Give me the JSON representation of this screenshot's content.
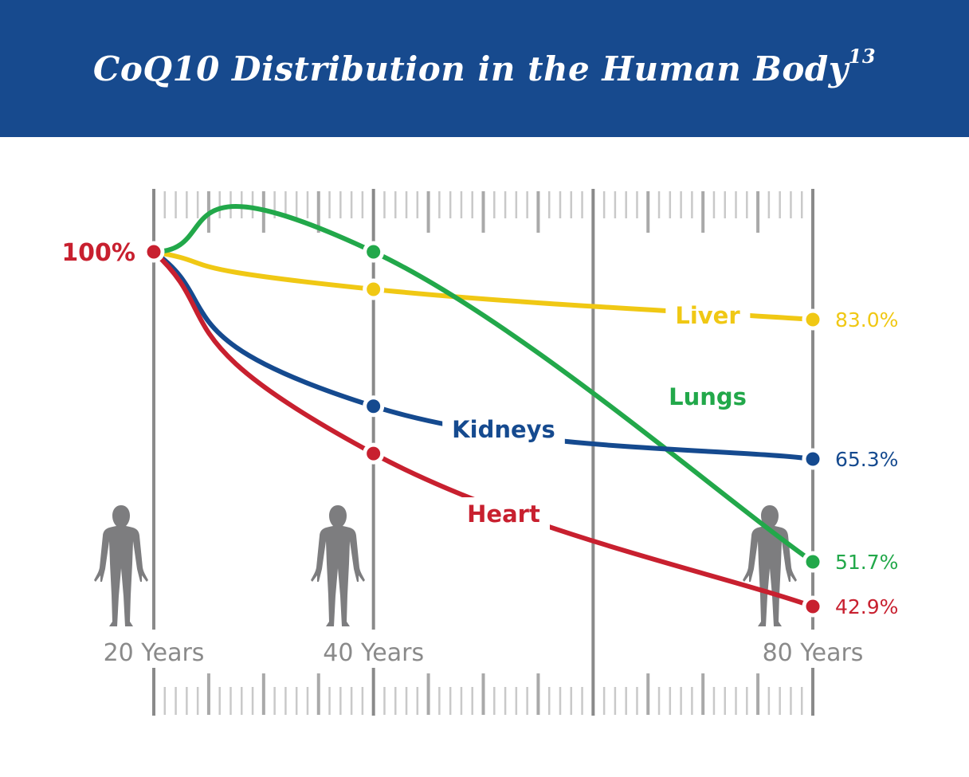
{
  "header": {
    "title": "CoQ10 Distribution in the Human Body",
    "title_superscript": "13",
    "background": "#174a8e"
  },
  "chart_data": {
    "type": "line",
    "title": "CoQ10 Distribution in the Human Body",
    "x": [
      20,
      40,
      80
    ],
    "x_ticks": [
      20,
      40,
      60,
      80
    ],
    "x_tick_labels": [
      "20 Years",
      "40 Years",
      "",
      "80 Years"
    ],
    "start_label": "100%",
    "start_color": "#c8202f",
    "grid": true,
    "series": [
      {
        "name": "Liver",
        "color": "#f0c814",
        "values": [
          100,
          90.6,
          83.0
        ],
        "end_label": "83.0%"
      },
      {
        "name": "Lungs",
        "color": "#22a84a",
        "values": [
          100,
          100,
          51.7
        ],
        "end_label": "51.7%"
      },
      {
        "name": "Kidneys",
        "color": "#154a8f",
        "values": [
          100,
          72,
          65.3
        ],
        "end_label": "65.3%"
      },
      {
        "name": "Heart",
        "color": "#c8202f",
        "values": [
          100,
          66,
          42.9
        ],
        "end_label": "42.9%"
      }
    ],
    "axis_color": "#8a8a8a",
    "figure_icon": "human-body-silhouette-icon"
  }
}
